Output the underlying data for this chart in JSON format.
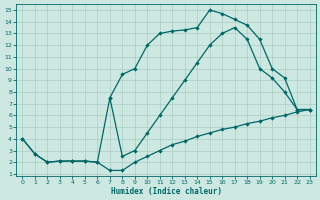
{
  "xlabel": "Humidex (Indice chaleur)",
  "bg_color": "#cce8e0",
  "grid_color": "#aaccc4",
  "line_color": "#006868",
  "xlim": [
    -0.5,
    23.5
  ],
  "ylim": [
    0.8,
    15.5
  ],
  "xticks": [
    0,
    1,
    2,
    3,
    4,
    5,
    6,
    7,
    8,
    9,
    10,
    11,
    12,
    13,
    14,
    15,
    16,
    17,
    18,
    19,
    20,
    21,
    22,
    23
  ],
  "yticks": [
    1,
    2,
    3,
    4,
    5,
    6,
    7,
    8,
    9,
    10,
    11,
    12,
    13,
    14,
    15
  ],
  "line1_x": [
    0,
    1,
    2,
    3,
    4,
    5,
    6,
    7,
    8,
    9,
    10,
    11,
    12,
    13,
    14,
    15,
    16,
    17,
    18,
    19,
    20,
    21,
    22,
    23
  ],
  "line1_y": [
    4.0,
    2.7,
    2.0,
    2.1,
    2.1,
    2.1,
    2.0,
    1.3,
    1.3,
    2.0,
    2.5,
    3.0,
    3.5,
    3.8,
    4.2,
    4.5,
    4.8,
    5.0,
    5.3,
    5.5,
    5.8,
    6.0,
    6.3,
    6.5
  ],
  "line2_x": [
    0,
    1,
    2,
    3,
    4,
    5,
    6,
    7,
    8,
    9,
    10,
    11,
    12,
    13,
    14,
    15,
    16,
    17,
    18,
    19,
    20,
    21,
    22,
    23
  ],
  "line2_y": [
    4.0,
    2.7,
    2.0,
    2.1,
    2.1,
    2.1,
    2.0,
    7.5,
    2.5,
    3.0,
    4.5,
    6.0,
    7.5,
    9.0,
    10.5,
    12.0,
    13.0,
    13.5,
    12.5,
    10.0,
    9.2,
    8.0,
    6.5,
    6.5
  ],
  "line3_x": [
    7,
    8,
    9,
    10,
    11,
    12,
    13,
    14,
    15,
    16,
    17,
    18,
    19,
    20,
    21,
    22,
    23
  ],
  "line3_y": [
    7.5,
    9.5,
    10.0,
    12.0,
    13.0,
    13.2,
    13.3,
    13.5,
    15.0,
    14.7,
    14.2,
    13.7,
    12.5,
    10.0,
    9.2,
    6.5,
    6.5
  ]
}
